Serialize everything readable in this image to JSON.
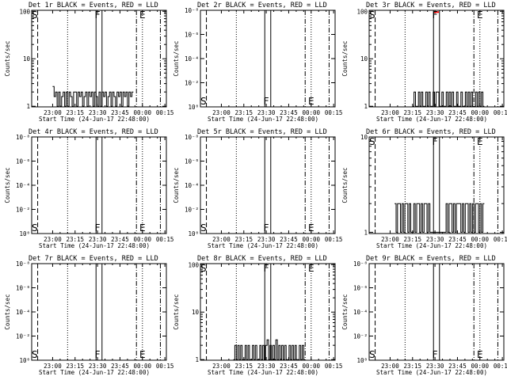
{
  "chart_data": [
    {
      "type": "line",
      "title": "Det 1r BLACK = Events, RED = LLD",
      "xlabel": "Start Time (24-Jun-17 22:48:00)",
      "ylabel": "Counts/sec",
      "yscale": "log",
      "ylim": [
        0.97,
        105
      ],
      "yticks": [
        {
          "v": 1,
          "t": "1"
        },
        {
          "v": 10,
          "t": "10"
        },
        {
          "v": 100,
          "t": "100"
        }
      ],
      "x_tick_labels": [
        "23:00",
        "23:15",
        "23:30",
        "23:45",
        "00:00",
        "00:15"
      ],
      "markers": [
        {
          "label": "S",
          "t": -12
        },
        {
          "label": "F",
          "t": 30
        },
        {
          "label": "E",
          "t": 60
        }
      ],
      "events_series": {
        "t_range": [
          0,
          54
        ],
        "base": 1,
        "values": [
          2.6,
          1.6,
          2,
          1,
          2,
          1,
          1.6,
          2,
          1,
          2,
          1,
          2,
          1.6,
          1,
          2,
          2,
          1,
          2,
          1.6,
          2,
          1,
          1.6,
          2,
          1,
          2,
          1.6,
          2,
          1,
          2,
          1.6,
          1,
          2,
          1,
          2,
          1.6,
          2,
          1,
          1.6,
          2,
          1,
          2,
          1.6,
          1,
          2,
          1.6,
          2,
          1,
          2,
          1.6,
          2,
          1,
          2,
          1.6,
          2
        ]
      }
    },
    {
      "type": "line",
      "title": "Det 2r BLACK = Events, RED = LLD",
      "xlabel": "Start Time (24-Jun-17 22:48:00)",
      "ylabel": "Counts/sec",
      "yscale": "log",
      "ylim": [
        1,
        1e-08
      ],
      "yticks": [
        {
          "v": 1,
          "t": "10⁰"
        },
        {
          "v": 0.01,
          "t": "10⁻²"
        },
        {
          "v": 0.0001,
          "t": "10⁻⁴"
        },
        {
          "v": 1e-06,
          "t": "10⁻⁶"
        },
        {
          "v": 1e-08,
          "t": "10⁻⁸"
        }
      ],
      "x_tick_labels": [
        "23:00",
        "23:15",
        "23:30",
        "23:45",
        "00:00",
        "00:15"
      ],
      "markers": [
        {
          "label": "S",
          "t": -12
        },
        {
          "label": "F",
          "t": 30
        },
        {
          "label": "E",
          "t": 60
        }
      ],
      "events_series": null
    },
    {
      "type": "line",
      "title": "Det 3r BLACK = Events, RED = LLD",
      "xlabel": "Start Time (24-Jun-17 22:48:00)",
      "ylabel": "Counts/sec",
      "yscale": "log",
      "ylim": [
        0.97,
        105
      ],
      "yticks": [
        {
          "v": 1,
          "t": "1"
        },
        {
          "v": 10,
          "t": "10"
        },
        {
          "v": 100,
          "t": "100"
        }
      ],
      "x_tick_labels": [
        "23:00",
        "23:15",
        "23:30",
        "23:45",
        "00:00",
        "00:15"
      ],
      "markers": [
        {
          "label": "S",
          "t": -12
        },
        {
          "label": "F",
          "t": 30
        },
        {
          "label": "E",
          "t": 60
        }
      ],
      "events_series": {
        "t_range": [
          15,
          63
        ],
        "base": 1,
        "values": [
          1,
          2,
          1,
          1,
          2,
          1,
          2,
          1,
          1,
          2,
          1,
          2,
          1,
          1,
          2,
          1,
          2,
          2,
          1,
          1,
          2,
          1,
          1,
          2,
          1,
          2,
          1,
          2,
          1,
          1,
          2,
          1,
          1,
          2,
          1,
          1,
          2,
          1,
          2,
          1,
          2,
          1,
          1,
          2,
          1,
          2,
          1,
          2,
          1
        ]
      },
      "lld_peak": {
        "t": 31,
        "value": 100
      }
    },
    {
      "type": "line",
      "title": "Det 4r BLACK = Events, RED = LLD",
      "xlabel": "Start Time (24-Jun-17 22:48:00)",
      "ylabel": "Counts/sec",
      "yscale": "log",
      "ylim": [
        1,
        1e-08
      ],
      "yticks": [
        {
          "v": 1,
          "t": "10⁰"
        },
        {
          "v": 0.01,
          "t": "10⁻²"
        },
        {
          "v": 0.0001,
          "t": "10⁻⁴"
        },
        {
          "v": 1e-06,
          "t": "10⁻⁶"
        },
        {
          "v": 1e-08,
          "t": "10⁻⁸"
        }
      ],
      "x_tick_labels": [
        "23:00",
        "23:15",
        "23:30",
        "23:45",
        "00:00",
        "00:15"
      ],
      "markers": [
        {
          "label": "S",
          "t": -12
        },
        {
          "label": "F",
          "t": 30
        },
        {
          "label": "E",
          "t": 60
        }
      ],
      "events_series": null
    },
    {
      "type": "line",
      "title": "Det 5r BLACK = Events, RED = LLD",
      "xlabel": "Start Time (24-Jun-17 22:48:00)",
      "ylabel": "Counts/sec",
      "yscale": "log",
      "ylim": [
        1,
        1e-08
      ],
      "yticks": [
        {
          "v": 1,
          "t": "10⁰"
        },
        {
          "v": 0.01,
          "t": "10⁻²"
        },
        {
          "v": 0.0001,
          "t": "10⁻⁴"
        },
        {
          "v": 1e-06,
          "t": "10⁻⁶"
        },
        {
          "v": 1e-08,
          "t": "10⁻⁸"
        }
      ],
      "x_tick_labels": [
        "23:00",
        "23:15",
        "23:30",
        "23:45",
        "00:00",
        "00:15"
      ],
      "markers": [
        {
          "label": "S",
          "t": -12
        },
        {
          "label": "F",
          "t": 30
        },
        {
          "label": "E",
          "t": 60
        }
      ],
      "events_series": null
    },
    {
      "type": "line",
      "title": "Det 6r BLACK = Events, RED = LLD",
      "xlabel": "Start Time (24-Jun-17 22:48:00)",
      "ylabel": "Counts/sec",
      "yscale": "log",
      "ylim": [
        0.97,
        10
      ],
      "yticks": [
        {
          "v": 1,
          "t": "1"
        },
        {
          "v": 10,
          "t": "10"
        }
      ],
      "x_tick_labels": [
        "23:00",
        "23:15",
        "23:30",
        "23:45",
        "00:00",
        "00:15"
      ],
      "markers": [
        {
          "label": "S",
          "t": -12
        },
        {
          "label": "F",
          "t": 30
        },
        {
          "label": "E",
          "t": 60
        }
      ],
      "events_series": {
        "t_range": [
          3,
          63
        ],
        "base": 1,
        "values": [
          2,
          1,
          2,
          2,
          1,
          2,
          1,
          2,
          2,
          1,
          2,
          1,
          1,
          2,
          1,
          2,
          2,
          1,
          2,
          1,
          2,
          2,
          1,
          2,
          1,
          1,
          1,
          1,
          1,
          1,
          1,
          1,
          1,
          1,
          1,
          2,
          1,
          2,
          2,
          1,
          2,
          1,
          2,
          2,
          2,
          1,
          2,
          1,
          2,
          2,
          1,
          2,
          1,
          2,
          1,
          2,
          2,
          1,
          2,
          1,
          2
        ]
      }
    },
    {
      "type": "line",
      "title": "Det 7r BLACK = Events, RED = LLD",
      "xlabel": "Start Time (24-Jun-17 22:48:00)",
      "ylabel": "Counts/sec",
      "yscale": "log",
      "ylim": [
        1,
        1e-08
      ],
      "yticks": [
        {
          "v": 1,
          "t": "10⁰"
        },
        {
          "v": 0.01,
          "t": "10⁻²"
        },
        {
          "v": 0.0001,
          "t": "10⁻⁴"
        },
        {
          "v": 1e-06,
          "t": "10⁻⁶"
        },
        {
          "v": 1e-08,
          "t": "10⁻⁸"
        }
      ],
      "x_tick_labels": [
        "23:00",
        "23:15",
        "23:30",
        "23:45",
        "00:00",
        "00:15"
      ],
      "markers": [
        {
          "label": "S",
          "t": -12
        },
        {
          "label": "F",
          "t": 30
        },
        {
          "label": "E",
          "t": 60
        }
      ],
      "events_series": null
    },
    {
      "type": "line",
      "title": "Det 8r BLACK = Events, RED = LLD",
      "xlabel": "Start Time (24-Jun-17 22:48:00)",
      "ylabel": "Counts/sec",
      "yscale": "log",
      "ylim": [
        0.97,
        105
      ],
      "yticks": [
        {
          "v": 1,
          "t": "1"
        },
        {
          "v": 10,
          "t": "10"
        },
        {
          "v": 100,
          "t": "100"
        }
      ],
      "x_tick_labels": [
        "23:00",
        "23:15",
        "23:30",
        "23:45",
        "00:00",
        "00:15"
      ],
      "markers": [
        {
          "label": "S",
          "t": -12
        },
        {
          "label": "F",
          "t": 30
        },
        {
          "label": "E",
          "t": 60
        }
      ],
      "events_series": {
        "t_range": [
          8,
          56
        ],
        "base": 1,
        "values": [
          1,
          2,
          1,
          2,
          1,
          2,
          1,
          1,
          2,
          1,
          2,
          1,
          1,
          2,
          1,
          2,
          1,
          1,
          2,
          1,
          2,
          1,
          2,
          2.6,
          1,
          2,
          1,
          2,
          1,
          2.6,
          1,
          2,
          1,
          2,
          1,
          2,
          1,
          1,
          2,
          1,
          2,
          1,
          2,
          1,
          1,
          2,
          1,
          2,
          1
        ]
      }
    },
    {
      "type": "line",
      "title": "Det 9r BLACK = Events, RED = LLD",
      "xlabel": "Start Time (24-Jun-17 22:48:00)",
      "ylabel": "Counts/sec",
      "yscale": "log",
      "ylim": [
        1,
        1e-08
      ],
      "yticks": [
        {
          "v": 1,
          "t": "10⁰"
        },
        {
          "v": 0.01,
          "t": "10⁻²"
        },
        {
          "v": 0.0001,
          "t": "10⁻⁴"
        },
        {
          "v": 1e-06,
          "t": "10⁻⁶"
        },
        {
          "v": 1e-08,
          "t": "10⁻⁸"
        }
      ],
      "x_tick_labels": [
        "23:00",
        "23:15",
        "23:30",
        "23:45",
        "00:00",
        "00:15"
      ],
      "markers": [
        {
          "label": "S",
          "t": -12
        },
        {
          "label": "F",
          "t": 30
        },
        {
          "label": "E",
          "t": 60
        }
      ],
      "events_series": null
    }
  ],
  "colors": {
    "axis": "#000000",
    "events": "#000000",
    "lld": "#ff0000",
    "background": "#ffffff"
  }
}
